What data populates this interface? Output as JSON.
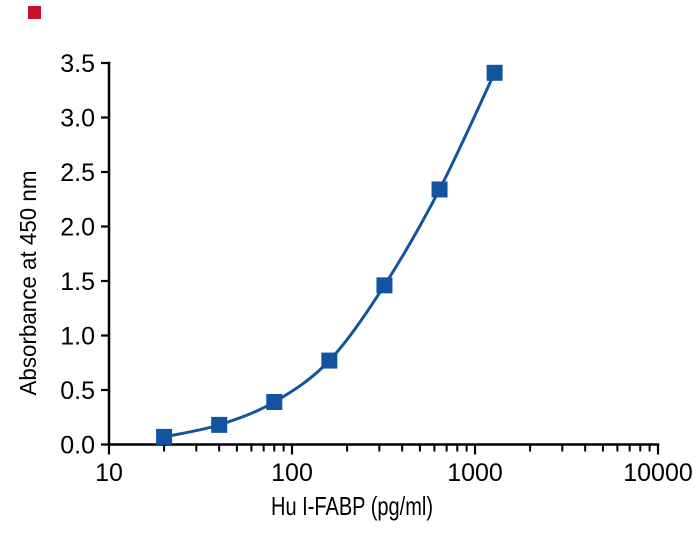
{
  "colors": {
    "curve": "#12549e",
    "marker": "#12549e",
    "axis": "#000000",
    "text": "#000000",
    "background": "#ffffff",
    "brand_square": "#c8102e"
  },
  "chart_data": {
    "type": "line",
    "title": "",
    "xlabel": "Hu I-FABP (pg/ml)",
    "ylabel": "Absorbance at 450 nm",
    "x_scale": "log",
    "y_scale": "linear",
    "xlim": [
      10,
      10000
    ],
    "ylim": [
      0,
      3.5
    ],
    "x_ticks": [
      10,
      100,
      1000,
      10000
    ],
    "x_tick_labels": [
      "10",
      "100",
      "1000",
      "10000"
    ],
    "x_minor_tick_multiples": [
      2,
      3,
      4,
      5,
      6,
      7,
      8,
      9
    ],
    "y_ticks": [
      0.0,
      0.5,
      1.0,
      1.5,
      2.0,
      2.5,
      3.0,
      3.5
    ],
    "y_tick_labels": [
      "0.0",
      "0.5",
      "1.0",
      "1.5",
      "2.0",
      "2.5",
      "3.0",
      "3.5"
    ],
    "x": [
      20,
      40,
      80,
      160,
      320,
      640,
      1280
    ],
    "y": [
      0.07,
      0.18,
      0.39,
      0.77,
      1.46,
      2.34,
      3.41
    ],
    "marker": "square",
    "grid": false,
    "legend": null
  }
}
